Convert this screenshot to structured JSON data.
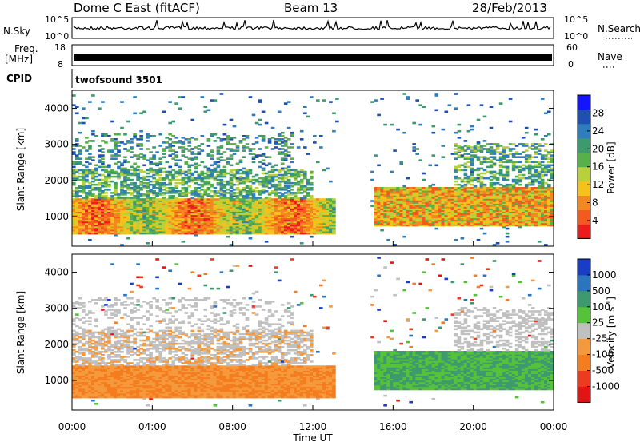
{
  "header": {
    "station": "Dome C East (fitACF)",
    "beam": "Beam 13",
    "date": "28/Feb/2013"
  },
  "top_panels": {
    "nsky_label": "N.Sky",
    "nsky_ticks": [
      "10^5",
      "10^0"
    ],
    "nsearch_label": "N.Search",
    "freq_label": "Freq.",
    "freq_unit": "[MHz]",
    "freq_ticks": [
      "18",
      "8"
    ],
    "nave_ticks": [
      "60",
      "0"
    ],
    "nave_label": "Nave",
    "cpid_label": "CPID",
    "cpid_value": "twofsound 3501"
  },
  "chart_data": [
    {
      "type": "heatmap",
      "panel": "power",
      "xlabel": "",
      "ylabel": "Slant Range [km]",
      "xlim_hours": [
        0,
        24
      ],
      "ylim": [
        180,
        4500
      ],
      "yticks": [
        "4000",
        "3000",
        "2000",
        "1000"
      ],
      "colorbar_label": "Power [dB]",
      "colorbar_ticks": [
        "28",
        "24",
        "20",
        "16",
        "12",
        "8",
        "4"
      ],
      "colors": [
        "#1414ff",
        "#1e50b4",
        "#2e7dbe",
        "#3c9a6e",
        "#58b04a",
        "#b8d13a",
        "#f5c21b",
        "#f4871f",
        "#f45a1f",
        "#ea1c1c"
      ]
    },
    {
      "type": "heatmap",
      "panel": "velocity",
      "xlabel": "Time UT",
      "ylabel": "Slant Range [km]",
      "xlim_hours": [
        0,
        24
      ],
      "ylim": [
        180,
        4500
      ],
      "yticks": [
        "4000",
        "3000",
        "2000",
        "1000"
      ],
      "xticks": [
        "00:00",
        "04:00",
        "08:00",
        "12:00",
        "16:00",
        "20:00",
        "00:00"
      ],
      "colorbar_label": "Velocity [m s",
      "colorbar_unit_exp": "-1",
      "colorbar_unit_close": "]",
      "colorbar_ticks": [
        "1000",
        "500",
        "100",
        "25",
        "-25",
        "-100",
        "-500",
        "-1000"
      ],
      "colors": [
        "#1a3dc8",
        "#2b74c0",
        "#3c9a6e",
        "#55c23a",
        "#c0c0c0",
        "#f59a3c",
        "#f47d1f",
        "#ee3a1f",
        "#e41414"
      ]
    }
  ]
}
